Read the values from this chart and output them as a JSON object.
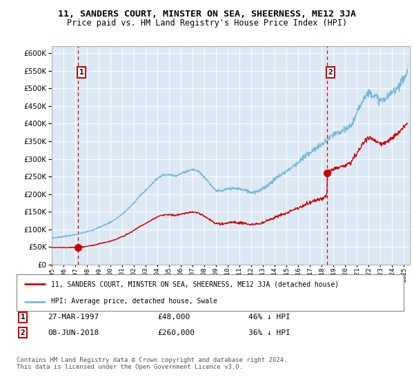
{
  "title": "11, SANDERS COURT, MINSTER ON SEA, SHEERNESS, ME12 3JA",
  "subtitle": "Price paid vs. HM Land Registry's House Price Index (HPI)",
  "background_color": "#dce9f5",
  "plot_bg_color": "#dce9f5",
  "grid_color": "#ffffff",
  "sale1": {
    "price": 48000,
    "x": 1997.23
  },
  "sale2": {
    "price": 260000,
    "x": 2018.44
  },
  "legend_line1": "11, SANDERS COURT, MINSTER ON SEA, SHEERNESS, ME12 3JA (detached house)",
  "legend_line2": "HPI: Average price, detached house, Swale",
  "note1_date": "27-MAR-1997",
  "note1_price": "£48,000",
  "note1_hpi": "46% ↓ HPI",
  "note2_date": "08-JUN-2018",
  "note2_price": "£260,000",
  "note2_hpi": "36% ↓ HPI",
  "footer": "Contains HM Land Registry data © Crown copyright and database right 2024.\nThis data is licensed under the Open Government Licence v3.0.",
  "hpi_color": "#7ab8d9",
  "price_color": "#cc0000",
  "dashed_line_color": "#cc0000",
  "ylim": [
    0,
    620000
  ],
  "xlim_start": 1995.0,
  "xlim_end": 2025.5
}
